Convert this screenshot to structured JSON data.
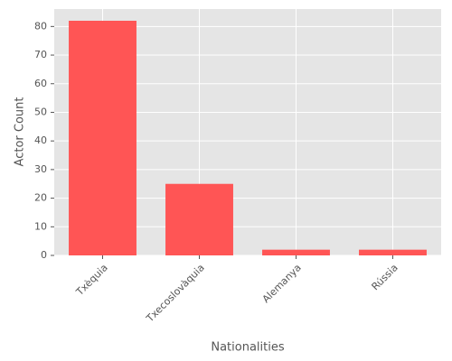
{
  "chart_data": {
    "type": "bar",
    "x_label": "Nationalities",
    "y_label": "Actor Count",
    "categories": [
      "Txèquia",
      "Txecoslovàquia",
      "Alemanya",
      "Rússia"
    ],
    "values": [
      82,
      25,
      2,
      2
    ],
    "color": "#ff5555",
    "ylim": [
      0,
      86.1
    ],
    "yticks": [
      0,
      10,
      20,
      30,
      40,
      50,
      60,
      70,
      80
    ],
    "grid": true
  }
}
